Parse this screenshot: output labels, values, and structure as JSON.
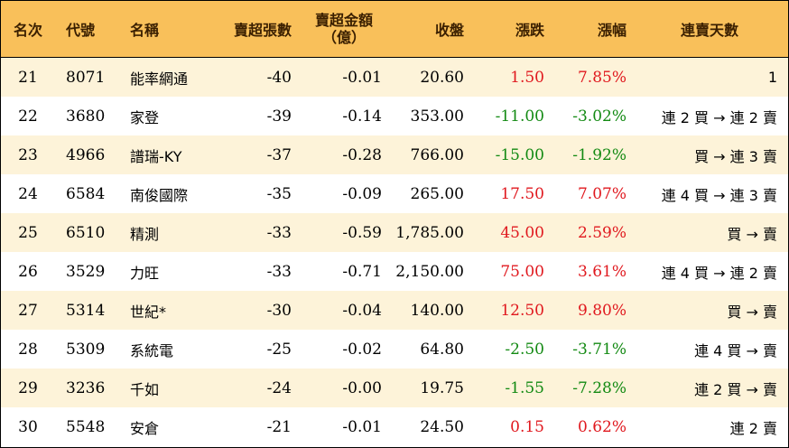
{
  "headers": {
    "rank": "名次",
    "code": "代號",
    "name": "名稱",
    "volume": "賣超張數",
    "amount_line1": "賣超金額",
    "amount_line2": "（億）",
    "close": "收盤",
    "change": "漲跌",
    "change_pct": "漲幅",
    "streak": "連賣天數"
  },
  "colors": {
    "header_bg": "#f9c05a",
    "odd_row_bg": "#fdf3d9",
    "up": "#e0181e",
    "down": "#138a13"
  },
  "rows": [
    {
      "rank": "21",
      "code": "8071",
      "name": "能率網通",
      "volume": "-40",
      "amount": "-0.01",
      "close": "20.60",
      "change": "1.50",
      "change_pct": "7.85%",
      "dir": "up",
      "streak": "1"
    },
    {
      "rank": "22",
      "code": "3680",
      "name": "家登",
      "volume": "-39",
      "amount": "-0.14",
      "close": "353.00",
      "change": "-11.00",
      "change_pct": "-3.02%",
      "dir": "down",
      "streak": "連 2 買 → 連 2 賣"
    },
    {
      "rank": "23",
      "code": "4966",
      "name": "譜瑞-KY",
      "volume": "-37",
      "amount": "-0.28",
      "close": "766.00",
      "change": "-15.00",
      "change_pct": "-1.92%",
      "dir": "down",
      "streak": "買 → 連 3 賣"
    },
    {
      "rank": "24",
      "code": "6584",
      "name": "南俊國際",
      "volume": "-35",
      "amount": "-0.09",
      "close": "265.00",
      "change": "17.50",
      "change_pct": "7.07%",
      "dir": "up",
      "streak": "連 4 買 → 連 3 賣"
    },
    {
      "rank": "25",
      "code": "6510",
      "name": "精測",
      "volume": "-33",
      "amount": "-0.59",
      "close": "1,785.00",
      "change": "45.00",
      "change_pct": "2.59%",
      "dir": "up",
      "streak": "買 → 賣"
    },
    {
      "rank": "26",
      "code": "3529",
      "name": "力旺",
      "volume": "-33",
      "amount": "-0.71",
      "close": "2,150.00",
      "change": "75.00",
      "change_pct": "3.61%",
      "dir": "up",
      "streak": "連 4 買 → 連 2 賣"
    },
    {
      "rank": "27",
      "code": "5314",
      "name": "世紀*",
      "volume": "-30",
      "amount": "-0.04",
      "close": "140.00",
      "change": "12.50",
      "change_pct": "9.80%",
      "dir": "up",
      "streak": "買 → 賣"
    },
    {
      "rank": "28",
      "code": "5309",
      "name": "系統電",
      "volume": "-25",
      "amount": "-0.02",
      "close": "64.80",
      "change": "-2.50",
      "change_pct": "-3.71%",
      "dir": "down",
      "streak": "連 4 買 → 賣"
    },
    {
      "rank": "29",
      "code": "3236",
      "name": "千如",
      "volume": "-24",
      "amount": "-0.00",
      "close": "19.75",
      "change": "-1.55",
      "change_pct": "-7.28%",
      "dir": "down",
      "streak": "連 2 買 → 賣"
    },
    {
      "rank": "30",
      "code": "5548",
      "name": "安倉",
      "volume": "-21",
      "amount": "-0.01",
      "close": "24.50",
      "change": "0.15",
      "change_pct": "0.62%",
      "dir": "up",
      "streak": "連 2 賣"
    }
  ]
}
